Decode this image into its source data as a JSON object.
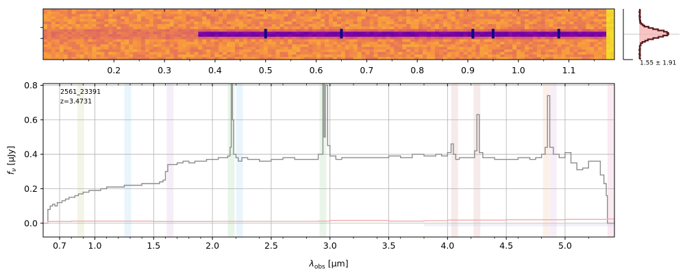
{
  "chart_data": [
    {
      "type": "heatmap",
      "panel": "2d-spectrum",
      "title": "",
      "x_tick_labels": [
        "0.2",
        "0.3",
        "0.4",
        "0.5",
        "0.6",
        "0.7",
        "0.8",
        "0.9",
        "1.0",
        "1.1"
      ],
      "x_ticks": [
        0.2,
        0.3,
        0.4,
        0.5,
        0.6,
        0.7,
        0.8,
        0.9,
        1.0,
        1.1
      ],
      "xlim": [
        0.06,
        1.19
      ],
      "colormap": "plasma",
      "trace_start": 0.37,
      "absorption_lines": [
        0.5,
        0.65,
        0.91,
        0.95,
        1.08
      ]
    },
    {
      "type": "line",
      "panel": "profile",
      "annotation": "1.55 ± 1.91",
      "ylim": [
        -1,
        1
      ],
      "profile_center": 0.05,
      "profile_width": 0.16
    },
    {
      "type": "line",
      "panel": "1d-spectrum",
      "title": "",
      "xlabel": "$\\lambda_\\mathrm{obs}$ [$\\mu$m]",
      "xlabel_main": "λ",
      "xlabel_sub": "obs",
      "xlabel_unit": " [μm]",
      "ylabel": "$f_\\nu$ [$\\mu$Jy]",
      "ylabel_main": "f",
      "ylabel_sub": "ν",
      "ylabel_unit": " [μJy]",
      "annotations": [
        "2561_23391",
        "z=3.4731"
      ],
      "x_tick_labels": [
        "0.7",
        "1.0",
        "1.5",
        "2.0",
        "2.5",
        "3.0",
        "3.5",
        "4.0",
        "4.5",
        "5.0"
      ],
      "x_ticks": [
        0.7,
        1.0,
        1.5,
        2.0,
        2.5,
        3.0,
        3.5,
        4.0,
        4.5,
        5.0
      ],
      "x_minor_ticks": [
        0.8,
        0.9,
        1.1,
        1.2,
        1.3,
        1.4,
        1.6,
        1.7,
        1.8,
        1.9,
        2.2,
        2.4,
        2.6,
        2.8,
        3.2,
        3.4,
        3.6,
        3.8,
        4.2,
        4.4,
        4.6,
        4.8,
        5.2
      ],
      "y_tick_labels": [
        "0.0",
        "0.2",
        "0.4",
        "0.6",
        "0.8"
      ],
      "y_ticks": [
        0.0,
        0.2,
        0.4,
        0.6,
        0.8
      ],
      "xlim": [
        0.56,
        5.42
      ],
      "ylim": [
        -0.08,
        0.81
      ],
      "grid": true,
      "series": [
        {
          "color": "#8c8c8c",
          "style": "steps",
          "x": [
            0.56,
            0.58,
            0.6,
            0.62,
            0.64,
            0.66,
            0.68,
            0.7,
            0.72,
            0.75,
            0.78,
            0.8,
            0.83,
            0.86,
            0.9,
            0.95,
            1.0,
            1.05,
            1.1,
            1.15,
            1.2,
            1.25,
            1.3,
            1.35,
            1.4,
            1.45,
            1.5,
            1.55,
            1.58,
            1.6,
            1.62,
            1.65,
            1.7,
            1.75,
            1.8,
            1.85,
            1.9,
            1.95,
            2.0,
            2.05,
            2.1,
            2.13,
            2.15,
            2.16,
            2.17,
            2.18,
            2.2,
            2.22,
            2.25,
            2.3,
            2.4,
            2.5,
            2.6,
            2.7,
            2.8,
            2.9,
            2.94,
            2.95,
            2.96,
            2.98,
            3.0,
            3.05,
            3.1,
            3.2,
            3.3,
            3.4,
            3.5,
            3.6,
            3.7,
            3.8,
            3.9,
            3.95,
            4.0,
            4.03,
            4.05,
            4.07,
            4.1,
            4.2,
            4.23,
            4.25,
            4.27,
            4.3,
            4.4,
            4.5,
            4.6,
            4.7,
            4.75,
            4.8,
            4.83,
            4.85,
            4.87,
            4.9,
            4.95,
            5.0,
            5.05,
            5.1,
            5.15,
            5.2,
            5.25,
            5.3,
            5.33,
            5.35,
            5.36,
            5.42
          ],
          "y": [
            0.0,
            0.0,
            0.08,
            0.1,
            0.11,
            0.1,
            0.12,
            0.12,
            0.13,
            0.14,
            0.15,
            0.15,
            0.16,
            0.17,
            0.18,
            0.19,
            0.19,
            0.2,
            0.21,
            0.21,
            0.21,
            0.22,
            0.22,
            0.22,
            0.23,
            0.23,
            0.23,
            0.24,
            0.25,
            0.3,
            0.34,
            0.34,
            0.35,
            0.36,
            0.35,
            0.36,
            0.36,
            0.37,
            0.37,
            0.38,
            0.38,
            0.39,
            0.44,
            0.81,
            0.6,
            0.4,
            0.38,
            0.36,
            0.38,
            0.37,
            0.36,
            0.37,
            0.38,
            0.37,
            0.37,
            0.4,
            0.81,
            0.5,
            0.8,
            0.45,
            0.39,
            0.37,
            0.38,
            0.38,
            0.38,
            0.38,
            0.39,
            0.38,
            0.4,
            0.39,
            0.4,
            0.39,
            0.41,
            0.46,
            0.4,
            0.37,
            0.38,
            0.38,
            0.42,
            0.63,
            0.41,
            0.38,
            0.37,
            0.37,
            0.38,
            0.37,
            0.38,
            0.4,
            0.44,
            0.74,
            0.44,
            0.4,
            0.38,
            0.41,
            0.35,
            0.31,
            0.32,
            0.36,
            0.36,
            0.28,
            0.23,
            0.16,
            0.0,
            0.0
          ]
        },
        {
          "color": "#f2a8a8",
          "style": "steps",
          "x": [
            0.56,
            0.6,
            0.8,
            1.0,
            1.5,
            2.0,
            2.9,
            3.0,
            3.5,
            3.8,
            4.0,
            4.5,
            5.0,
            5.36,
            5.42
          ],
          "y": [
            0.0,
            0.01,
            0.012,
            0.012,
            0.01,
            0.011,
            0.012,
            0.016,
            0.012,
            0.015,
            0.018,
            0.02,
            0.022,
            0.025,
            0.0
          ]
        }
      ],
      "line_bands": [
        {
          "x": 0.88,
          "color": "#9e9a24"
        },
        {
          "x": 1.28,
          "color": "#3aa0e0"
        },
        {
          "x": 1.64,
          "color": "#a060c0"
        },
        {
          "x": 2.16,
          "color": "#2ca02c"
        },
        {
          "x": 2.23,
          "color": "#3aa0e0"
        },
        {
          "x": 2.94,
          "color": "#2ca02c"
        },
        {
          "x": 4.06,
          "color": "#b04040"
        },
        {
          "x": 4.25,
          "color": "#b04040"
        },
        {
          "x": 4.84,
          "color": "#e08030"
        },
        {
          "x": 4.9,
          "color": "#c060c0"
        },
        {
          "x": 5.39,
          "color": "#d04080"
        }
      ]
    }
  ]
}
